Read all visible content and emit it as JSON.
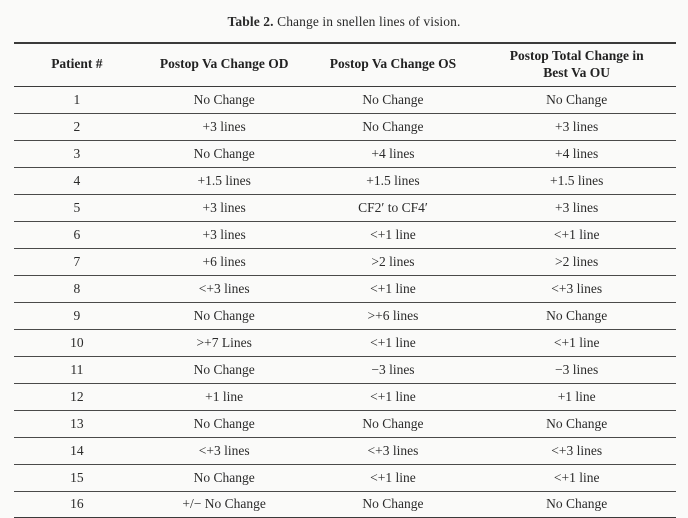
{
  "caption": {
    "label": "Table 2.",
    "text": " Change in snellen lines of vision."
  },
  "chart_data": {
    "type": "table",
    "title": "Table 2. Change in snellen lines of vision.",
    "columns": [
      "Patient #",
      "Postop Va Change OD",
      "Postop Va Change OS",
      "Postop Total Change in\nBest Va OU"
    ],
    "rows": [
      [
        "1",
        "No Change",
        "No Change",
        "No Change"
      ],
      [
        "2",
        "+3 lines",
        "No Change",
        "+3 lines"
      ],
      [
        "3",
        "No Change",
        "+4 lines",
        "+4 lines"
      ],
      [
        "4",
        "+1.5 lines",
        "+1.5 lines",
        "+1.5 lines"
      ],
      [
        "5",
        "+3 lines",
        "CF2′ to CF4′",
        "+3 lines"
      ],
      [
        "6",
        "+3 lines",
        "<+1 line",
        "<+1 line"
      ],
      [
        "7",
        "+6 lines",
        ">2 lines",
        ">2 lines"
      ],
      [
        "8",
        "<+3 lines",
        "<+1 line",
        "<+3 lines"
      ],
      [
        "9",
        "No Change",
        ">+6 lines",
        "No Change"
      ],
      [
        "10",
        ">+7 Lines",
        "<+1 line",
        "<+1 line"
      ],
      [
        "11",
        "No Change",
        "−3 lines",
        "−3 lines"
      ],
      [
        "12",
        "+1 line",
        "<+1 line",
        "+1 line"
      ],
      [
        "13",
        "No Change",
        "No Change",
        "No Change"
      ],
      [
        "14",
        "<+3 lines",
        "<+3 lines",
        "<+3 lines"
      ],
      [
        "15",
        "No Change",
        "<+1 line",
        "<+1 line"
      ],
      [
        "16",
        "+/− No Change",
        "No Change",
        "No Change"
      ]
    ]
  }
}
